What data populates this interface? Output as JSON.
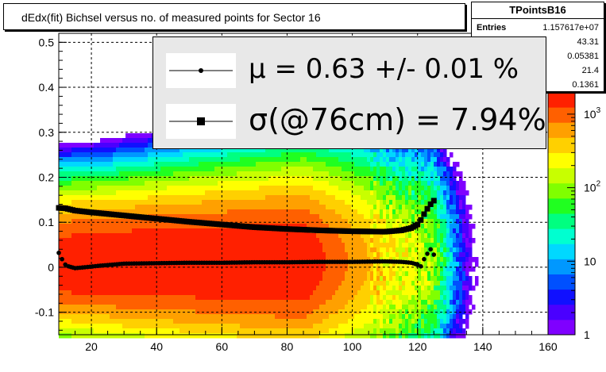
{
  "title": "dEdx(fit) Bichsel versus no. of measured points for Sector 16",
  "stats": {
    "name": "TPointsB16",
    "entries_label": "Entries",
    "entries_value": "1.157617e+07",
    "values": [
      "43.31",
      "0.05381",
      "21.4",
      "0.1361"
    ]
  },
  "legend": {
    "mu_text": "μ  =  0.63 +/-  0.01 %",
    "sigma_text": "σ(@76cm) =  7.94%"
  },
  "chart_data": {
    "type": "heatmap",
    "title": "dEdx(fit) Bichsel versus no. of measured points for Sector 16",
    "xlabel": "",
    "ylabel": "",
    "xlim": [
      10,
      160
    ],
    "ylim": [
      -0.15,
      0.52
    ],
    "x_ticks": [
      20,
      40,
      60,
      80,
      100,
      120,
      140,
      160
    ],
    "y_ticks": [
      -0.1,
      0,
      0.1,
      0.2,
      0.3,
      0.4,
      0.5
    ],
    "y_tick_labels": [
      "-0.1",
      "0",
      "0.1",
      "0.2",
      "0.3",
      "0.4",
      "0.5"
    ],
    "grid": true,
    "z_scale": "log",
    "z_range": [
      1,
      2000
    ],
    "z_tick_labels": [
      {
        "label": "1",
        "exp": null,
        "value": 1
      },
      {
        "label": "10",
        "exp": null,
        "value": 10
      },
      {
        "label": "10",
        "exp": "2",
        "value": 100
      },
      {
        "label": "10",
        "exp": "3",
        "value": 1000
      }
    ],
    "palette": [
      "#7f00ff",
      "#4a00ff",
      "#1010ff",
      "#0050ff",
      "#0098ff",
      "#00d8ff",
      "#00ffd0",
      "#00ff80",
      "#20ff20",
      "#80ff00",
      "#c8ff00",
      "#ffff00",
      "#ffd000",
      "#ffa000",
      "#ff6000",
      "#ff2000"
    ],
    "series": [
      {
        "name": "μ",
        "marker": "circle",
        "x": [
          10,
          11,
          12,
          13,
          15,
          18,
          22,
          30,
          40,
          50,
          60,
          70,
          80,
          90,
          100,
          110,
          115,
          118,
          120,
          121,
          122,
          123,
          124,
          125
        ],
        "y": [
          0.032,
          0.018,
          0.006,
          0.002,
          -0.002,
          0.0,
          0.003,
          0.008,
          0.009,
          0.01,
          0.01,
          0.011,
          0.011,
          0.012,
          0.012,
          0.013,
          0.012,
          0.01,
          0.006,
          0.002,
          0.018,
          0.03,
          0.04,
          0.028
        ]
      },
      {
        "name": "σ(@76cm)",
        "marker": "square",
        "x": [
          10,
          12,
          15,
          20,
          30,
          40,
          50,
          60,
          70,
          80,
          90,
          100,
          110,
          115,
          118,
          120,
          121,
          122,
          123,
          124,
          125
        ],
        "y": [
          0.132,
          0.131,
          0.126,
          0.122,
          0.115,
          0.108,
          0.101,
          0.095,
          0.089,
          0.085,
          0.082,
          0.08,
          0.079,
          0.082,
          0.087,
          0.095,
          0.105,
          0.118,
          0.13,
          0.14,
          0.148
        ]
      }
    ]
  }
}
